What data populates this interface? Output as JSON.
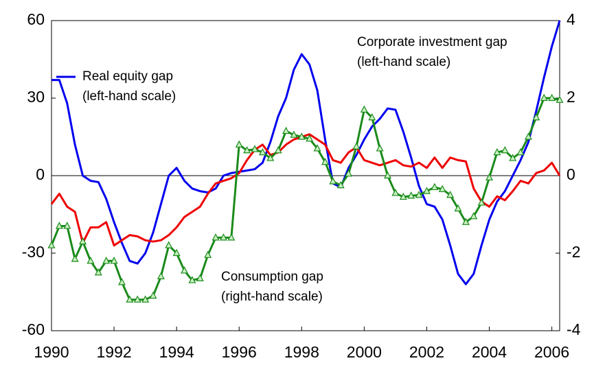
{
  "chart_data": {
    "type": "line",
    "x": [
      1990,
      1990.25,
      1990.5,
      1990.75,
      1991,
      1991.25,
      1991.5,
      1991.75,
      1992,
      1992.25,
      1992.5,
      1992.75,
      1993,
      1993.25,
      1993.5,
      1993.75,
      1994,
      1994.25,
      1994.5,
      1994.75,
      1995,
      1995.25,
      1995.5,
      1995.75,
      1996,
      1996.25,
      1996.5,
      1996.75,
      1997,
      1997.25,
      1997.5,
      1997.75,
      1998,
      1998.25,
      1998.5,
      1998.75,
      1999,
      1999.25,
      1999.5,
      1999.75,
      2000,
      2000.25,
      2000.5,
      2000.75,
      2001,
      2001.25,
      2001.5,
      2001.75,
      2002,
      2002.25,
      2002.5,
      2002.75,
      2003,
      2003.25,
      2003.5,
      2003.75,
      2004,
      2004.25,
      2004.5,
      2004.75,
      2005,
      2005.25,
      2005.5,
      2005.75,
      2006,
      2006.25
    ],
    "series": [
      {
        "name": "Real equity gap",
        "color": "#0000ee",
        "axis": "y",
        "markers": false,
        "values": [
          37,
          37,
          28,
          12,
          0,
          -2,
          -2.5,
          -9,
          -18,
          -26,
          -33,
          -34,
          -30,
          -22,
          -11,
          0,
          3,
          -2,
          -5,
          -6,
          -6.5,
          -5,
          0,
          1,
          1.5,
          2,
          2.5,
          5,
          13,
          23,
          30,
          41,
          47,
          43,
          33,
          14,
          -3,
          -4.5,
          3,
          8,
          14,
          19,
          22,
          26,
          25.5,
          17,
          7,
          -4,
          -11,
          -12,
          -17,
          -27,
          -38,
          -42,
          -38,
          -27,
          -17,
          -10,
          -6,
          0,
          6,
          13,
          25,
          38,
          50,
          60
        ]
      },
      {
        "name": "Corporate investment gap",
        "color": "#ee0000",
        "axis": "y",
        "markers": false,
        "values": [
          -11,
          -7,
          -12,
          -14,
          -26,
          -20,
          -20,
          -18,
          -27,
          -25,
          -23,
          -23.5,
          -25,
          -25.5,
          -25,
          -23,
          -20,
          -16,
          -14,
          -12,
          -7,
          -3,
          -2,
          -1,
          1,
          6,
          10,
          12,
          8,
          9,
          12,
          14,
          15,
          16,
          14,
          12,
          6,
          5,
          9,
          11,
          6,
          5,
          4,
          5,
          6,
          4,
          3.5,
          5,
          3,
          7,
          3,
          7,
          6,
          5.5,
          -5,
          -10,
          -12,
          -8,
          -9.5,
          -6,
          -2,
          -3,
          1,
          2,
          5,
          0
        ]
      },
      {
        "name": "Consumption gap",
        "color": "#1a8a1a",
        "axis": "y2",
        "markers": true,
        "values": [
          -1.8,
          -1.3,
          -1.3,
          -2.15,
          -1.7,
          -2.2,
          -2.5,
          -2.2,
          -2.2,
          -2.75,
          -3.2,
          -3.2,
          -3.2,
          -3.1,
          -2.6,
          -1.8,
          -2.0,
          -2.45,
          -2.7,
          -2.65,
          -2.05,
          -1.6,
          -1.6,
          -1.6,
          0.8,
          0.65,
          0.68,
          0.6,
          0.45,
          0.65,
          1.15,
          1.05,
          1.0,
          0.95,
          0.7,
          0.35,
          -0.15,
          -0.25,
          0.05,
          0.75,
          1.7,
          1.5,
          0.7,
          0.0,
          -0.45,
          -0.55,
          -0.52,
          -0.5,
          -0.4,
          -0.3,
          -0.35,
          -0.5,
          -0.85,
          -1.2,
          -1.05,
          -0.7,
          -0.05,
          0.6,
          0.65,
          0.45,
          0.6,
          1.0,
          1.5,
          2.0,
          2.0,
          1.95
        ]
      }
    ],
    "annotations": [
      [
        "Real equity gap",
        "(left-hand scale)"
      ],
      [
        "Corporate investment gap",
        "(left-hand scale)"
      ],
      [
        "Consumption gap",
        "(right-hand scale)"
      ]
    ],
    "xlim": [
      1990,
      2006.25
    ],
    "xticks": [
      1990,
      1992,
      1994,
      1996,
      1998,
      2000,
      2002,
      2004,
      2006
    ],
    "ylim": [
      -60,
      60
    ],
    "yticks": [
      -60,
      -30,
      0,
      30,
      60
    ],
    "y2lim": [
      -4,
      4
    ],
    "y2ticks": [
      -4,
      -2,
      0,
      2,
      4
    ],
    "zero_line": true
  }
}
